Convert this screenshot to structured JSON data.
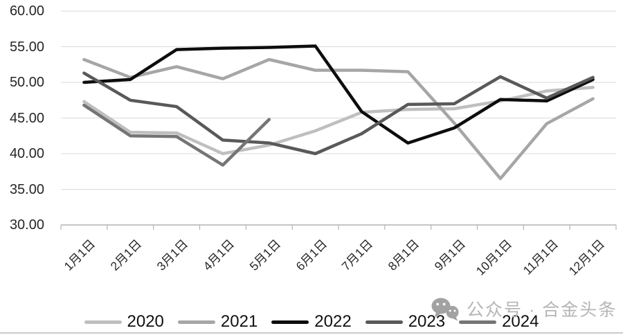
{
  "watermark": {
    "icon": "wechat-icon",
    "text": "公众号 · 合金头条"
  },
  "chart_data": {
    "type": "line",
    "title": "",
    "xlabel": "",
    "ylabel": "",
    "grid": true,
    "legend_position": "bottom",
    "ylim": [
      30,
      60
    ],
    "ytick_step": 5,
    "ytick_labels": [
      "30.00",
      "35.00",
      "40.00",
      "45.00",
      "50.00",
      "55.00",
      "60.00"
    ],
    "categories": [
      "1月1日",
      "2月1日",
      "3月1日",
      "4月1日",
      "5月1日",
      "6月1日",
      "7月1日",
      "8月1日",
      "9月1日",
      "10月1日",
      "11月1日",
      "12月1日"
    ],
    "series": [
      {
        "name": "2020",
        "color": "#bfbfbf",
        "values": [
          47.3,
          43.0,
          42.9,
          40.0,
          41.2,
          43.2,
          45.8,
          46.2,
          46.3,
          47.4,
          48.8,
          49.3
        ]
      },
      {
        "name": "2021",
        "color": "#a6a6a6",
        "values": [
          53.2,
          50.7,
          52.2,
          50.5,
          53.2,
          51.7,
          51.7,
          51.5,
          44.3,
          36.5,
          44.2,
          47.7
        ]
      },
      {
        "name": "2022",
        "color": "#0d0d0d",
        "values": [
          50.0,
          50.4,
          54.6,
          54.8,
          54.9,
          55.1,
          45.9,
          41.5,
          43.6,
          47.6,
          47.4,
          50.4
        ]
      },
      {
        "name": "2023",
        "color": "#595959",
        "values": [
          51.3,
          47.5,
          46.6,
          41.9,
          41.5,
          40.0,
          42.8,
          46.9,
          47.0,
          50.8,
          47.8,
          50.7
        ]
      },
      {
        "name": "2024",
        "color": "#757575",
        "values": [
          46.8,
          42.5,
          42.4,
          38.4,
          44.8,
          null,
          null,
          null,
          null,
          null,
          null,
          null
        ]
      }
    ],
    "gridline_color": "#d9d9d9",
    "axis_line_color": "#b3b3b3"
  }
}
